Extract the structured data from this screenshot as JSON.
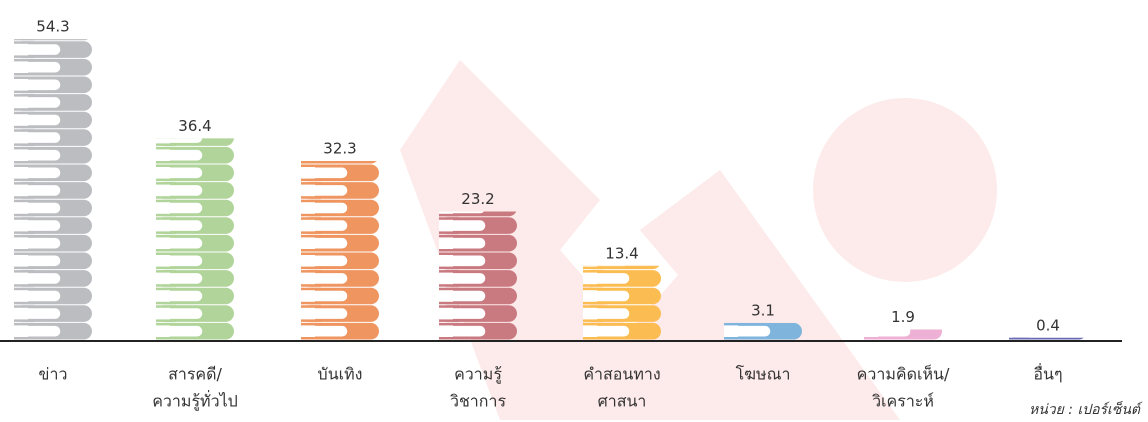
{
  "chart_data": {
    "type": "bar",
    "categories": [
      [
        "ข่าว"
      ],
      [
        "สารคดี/",
        "ความรู้ทั่วไป"
      ],
      [
        "บันเทิง"
      ],
      [
        "ความรู้",
        "วิชาการ"
      ],
      [
        "คำสอนทาง",
        "ศาสนา"
      ],
      [
        "โฆษณา"
      ],
      [
        "ความคิดเห็น/",
        "วิเคราะห์"
      ],
      [
        "อื่นๆ"
      ]
    ],
    "values": [
      54.3,
      36.4,
      32.3,
      23.2,
      13.4,
      3.1,
      1.9,
      0.4
    ],
    "colors": [
      "#bcbdc1",
      "#b0d49a",
      "#ef9560",
      "#c97a80",
      "#fbbd52",
      "#7fb5dd",
      "#eeb0d4",
      "#6b6bb5"
    ],
    "unit_note": "หน่วย : เปอร์เซ็นต์"
  }
}
